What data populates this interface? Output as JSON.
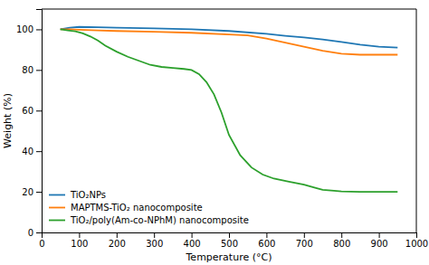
{
  "chart_data": {
    "type": "line",
    "xlabel": "Temperature (°C)",
    "ylabel": "Weight (%)",
    "xlim": [
      0,
      1000
    ],
    "ylim": [
      0,
      110
    ],
    "xticks": [
      0,
      100,
      200,
      300,
      400,
      500,
      600,
      700,
      800,
      900,
      1000
    ],
    "yticks": [
      0,
      20,
      40,
      60,
      80,
      100
    ],
    "grid": false,
    "legend": "lower left",
    "series": [
      {
        "name": "TiO₂NPs",
        "x": [
          50,
          75,
          100,
          150,
          200,
          300,
          400,
          500,
          600,
          650,
          700,
          750,
          800,
          850,
          900,
          950
        ],
        "values": [
          100.0,
          100.8,
          101.2,
          101.0,
          100.8,
          100.5,
          100.0,
          99.2,
          97.8,
          96.8,
          96.0,
          95.0,
          93.8,
          92.5,
          91.5,
          91.0
        ]
      },
      {
        "name": "MAPTMS-TiO₂ nanocomposite",
        "x": [
          50,
          75,
          100,
          150,
          200,
          300,
          400,
          500,
          550,
          600,
          650,
          700,
          750,
          800,
          850,
          900,
          950
        ],
        "values": [
          100.0,
          100.0,
          99.8,
          99.5,
          99.2,
          98.8,
          98.3,
          97.5,
          97.0,
          95.5,
          93.5,
          91.5,
          89.5,
          88.0,
          87.5,
          87.5,
          87.5
        ]
      },
      {
        "name": "TiO₂/poly(Am-co-NPhM) nanocomposite",
        "x": [
          50,
          70,
          90,
          110,
          130,
          150,
          170,
          200,
          230,
          260,
          290,
          320,
          350,
          380,
          400,
          420,
          440,
          460,
          480,
          500,
          530,
          560,
          590,
          620,
          660,
          700,
          730,
          750,
          780,
          800,
          850,
          900,
          950
        ],
        "values": [
          100.0,
          99.5,
          99.0,
          98.0,
          96.5,
          94.5,
          92.0,
          89.0,
          86.5,
          84.5,
          82.5,
          81.5,
          81.0,
          80.5,
          80.0,
          78.0,
          74.0,
          68.0,
          59.0,
          48.0,
          38.0,
          32.0,
          28.5,
          26.5,
          25.0,
          23.5,
          22.0,
          21.0,
          20.5,
          20.2,
          20.0,
          20.0,
          20.0
        ]
      }
    ]
  }
}
